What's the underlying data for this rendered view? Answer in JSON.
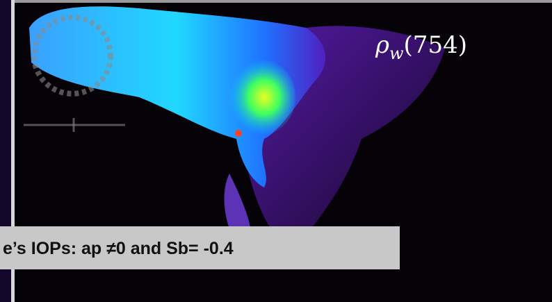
{
  "label": {
    "symbol": "ρ",
    "subscript": "w",
    "argument": "(754)"
  },
  "caption": "e’s IOPs: ap ≠0 and  Sb= -0.4"
}
